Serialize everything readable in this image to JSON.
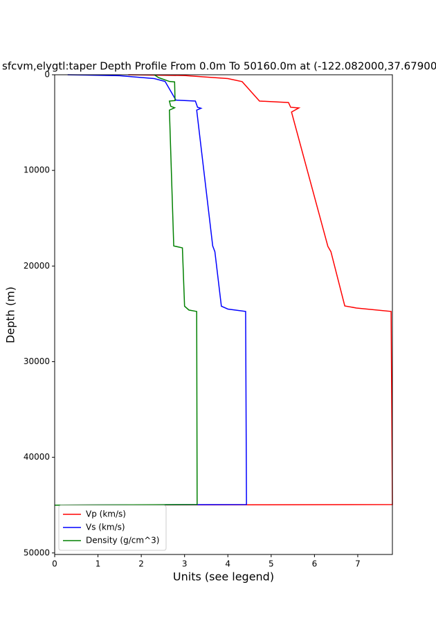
{
  "chart_data": {
    "type": "line",
    "title": "sfcvm,elygtl:taper Depth Profile From 0.0m To 50160.0m at (-122.082000,37.67900",
    "x_label": "Units (see legend)",
    "y_label": "Depth (m)",
    "xlim": [
      0,
      7.8
    ],
    "ylim": [
      0,
      50160
    ],
    "y_inverted": true,
    "xticks": [
      0,
      1,
      2,
      3,
      4,
      5,
      6,
      7
    ],
    "yticks": [
      0,
      10000,
      20000,
      30000,
      40000,
      50000
    ],
    "legend": "lower left",
    "series": [
      {
        "name": "Vp (km/s)",
        "color": "#ff0000",
        "x": [
          1.7,
          3.0,
          4.0,
          4.33,
          4.73,
          5.4,
          5.45,
          5.64,
          5.47,
          6.31,
          6.38,
          6.7,
          6.97,
          7.77,
          7.8,
          0
        ],
        "y": [
          0,
          80,
          400,
          720,
          2750,
          2900,
          3400,
          3470,
          3900,
          17950,
          18500,
          24170,
          24390,
          24750,
          44940,
          45000
        ]
      },
      {
        "name": "Vs (km/s)",
        "color": "#0000ff",
        "x": [
          0.3,
          1.5,
          2.3,
          2.55,
          2.8,
          3.25,
          3.3,
          3.38,
          3.28,
          3.65,
          3.7,
          3.85,
          4.0,
          4.41,
          4.43,
          0
        ],
        "y": [
          0,
          100,
          400,
          700,
          2650,
          2750,
          3400,
          3500,
          3700,
          17900,
          18500,
          24200,
          24500,
          24750,
          44940,
          45000
        ]
      },
      {
        "name": "Density (g/cm^3)",
        "color": "#008000",
        "x": [
          2.3,
          2.4,
          2.65,
          2.77,
          2.78,
          2.65,
          2.68,
          2.77,
          2.65,
          2.75,
          2.95,
          3.0,
          3.1,
          3.28,
          3.29,
          0
        ],
        "y": [
          0,
          300,
          700,
          750,
          2700,
          2750,
          3300,
          3450,
          3700,
          17900,
          18100,
          24200,
          24600,
          24750,
          44940,
          45000
        ]
      }
    ]
  }
}
